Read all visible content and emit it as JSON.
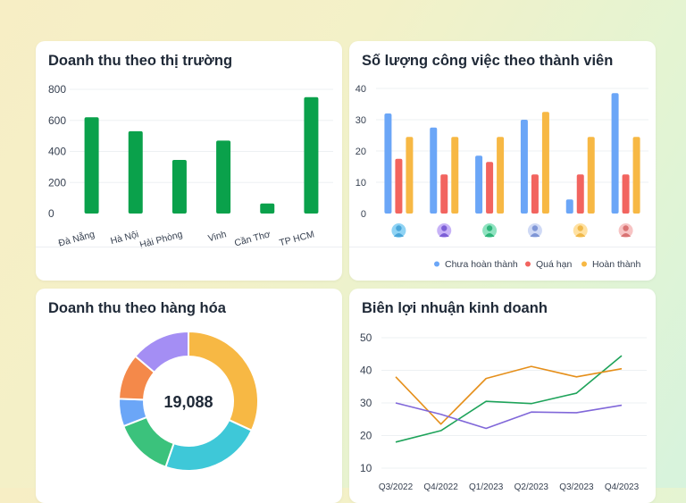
{
  "charts": [
    {
      "title": "Doanh thu theo thị trường",
      "chart_data": {
        "type": "bar",
        "categories": [
          "Đà Nẵng",
          "Hà Nội",
          "Hải Phòng",
          "Vinh",
          "Cần Thơ",
          "TP HCM"
        ],
        "values": [
          620,
          530,
          345,
          470,
          65,
          750
        ],
        "ylim": [
          0,
          800
        ],
        "yticks": [
          0,
          200,
          400,
          600,
          800
        ],
        "color": "#0aa14b",
        "grid": true
      }
    },
    {
      "title": "Số lượng công việc theo thành viên",
      "chart_data": {
        "type": "bar",
        "categories": [
          "avatar-1",
          "avatar-2",
          "avatar-3",
          "avatar-4",
          "avatar-5",
          "avatar-6"
        ],
        "series": [
          {
            "name": "Chưa hoàn thành",
            "color": "#6ba6f7",
            "values": [
              32,
              27.5,
              18.5,
              30,
              4.5,
              38.5
            ]
          },
          {
            "name": "Quá hạn",
            "color": "#f2645f",
            "values": [
              17.5,
              12.5,
              16.5,
              12.5,
              12.5,
              12.5
            ]
          },
          {
            "name": "Hoàn thành",
            "color": "#f7b844",
            "values": [
              24.5,
              24.5,
              24.5,
              32.5,
              24.5,
              24.5
            ]
          }
        ],
        "ylim": [
          0,
          40
        ],
        "yticks": [
          0,
          10,
          20,
          30,
          40
        ],
        "legend": "bottom-right",
        "grid": true
      }
    },
    {
      "title": "Doanh thu theo hàng hóa",
      "chart_data": {
        "type": "pie",
        "center_label": "19,088",
        "slices": [
          {
            "value": 30,
            "color": "#f7b844"
          },
          {
            "value": 22,
            "color": "#3ec8d8"
          },
          {
            "value": 13,
            "color": "#3bc27c"
          },
          {
            "value": 6,
            "color": "#6ba6f7"
          },
          {
            "value": 10,
            "color": "#f4894a"
          },
          {
            "value": 13,
            "color": "#a48ef4"
          }
        ]
      }
    },
    {
      "title": "Biên lợi nhuận kinh doanh",
      "chart_data": {
        "type": "line",
        "x": [
          "Q3/2022",
          "Q4/2022",
          "Q1/2023",
          "Q2/2023",
          "Q3/2023",
          "Q4/2023"
        ],
        "series": [
          {
            "color": "#1ea35a",
            "values": [
              18,
              21.5,
              30.5,
              29.8,
              33,
              44.5
            ]
          },
          {
            "color": "#e58f1a",
            "values": [
              38,
              23.5,
              37.5,
              41.2,
              38,
              40.5
            ]
          },
          {
            "color": "#8067d9",
            "values": [
              30,
              26.5,
              22.2,
              27.2,
              27,
              29.3
            ]
          }
        ],
        "ylim": [
          10,
          50
        ],
        "yticks": [
          10,
          20,
          30,
          40,
          50
        ],
        "grid": true
      }
    }
  ]
}
